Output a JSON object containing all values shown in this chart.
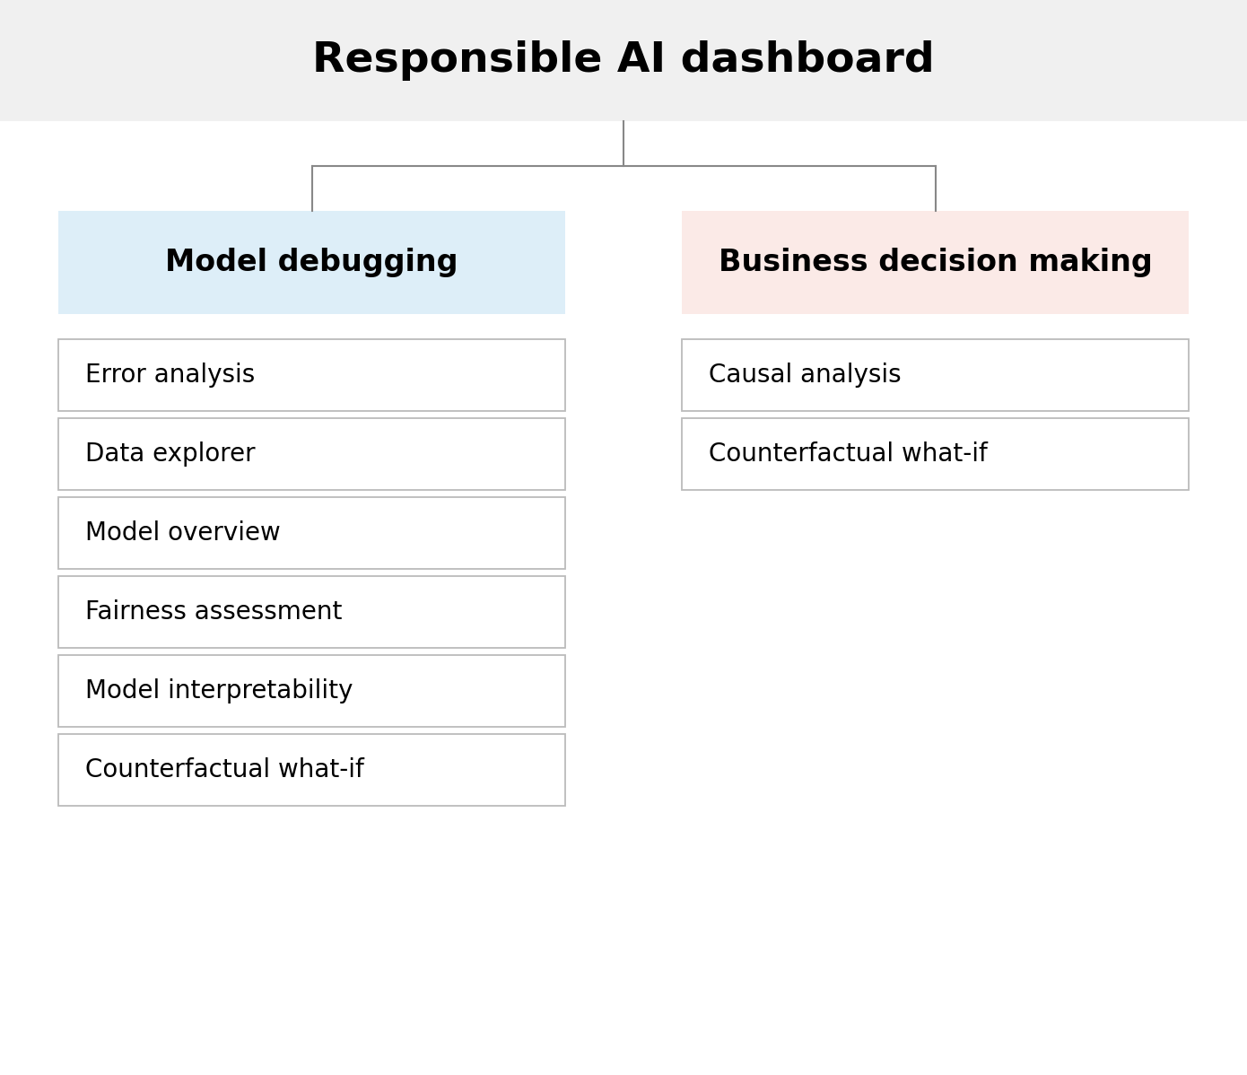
{
  "title": "Responsible AI dashboard",
  "title_fontsize": 34,
  "title_bg_color": "#f0f0f0",
  "bg_color": "#ffffff",
  "left_header": "Model debugging",
  "left_header_bg": "#ddeef8",
  "right_header": "Business decision making",
  "right_header_bg": "#fbeae7",
  "header_fontsize": 24,
  "item_fontsize": 20,
  "left_items": [
    "Error analysis",
    "Data explorer",
    "Model overview",
    "Fairness assessment",
    "Model interpretability",
    "Counterfactual what-if"
  ],
  "right_items": [
    "Causal analysis",
    "Counterfactual what-if"
  ],
  "box_border_color": "#bbbbbb",
  "line_color": "#888888",
  "text_color": "#000000",
  "fig_width": 13.9,
  "fig_height": 11.98,
  "dpi": 100
}
